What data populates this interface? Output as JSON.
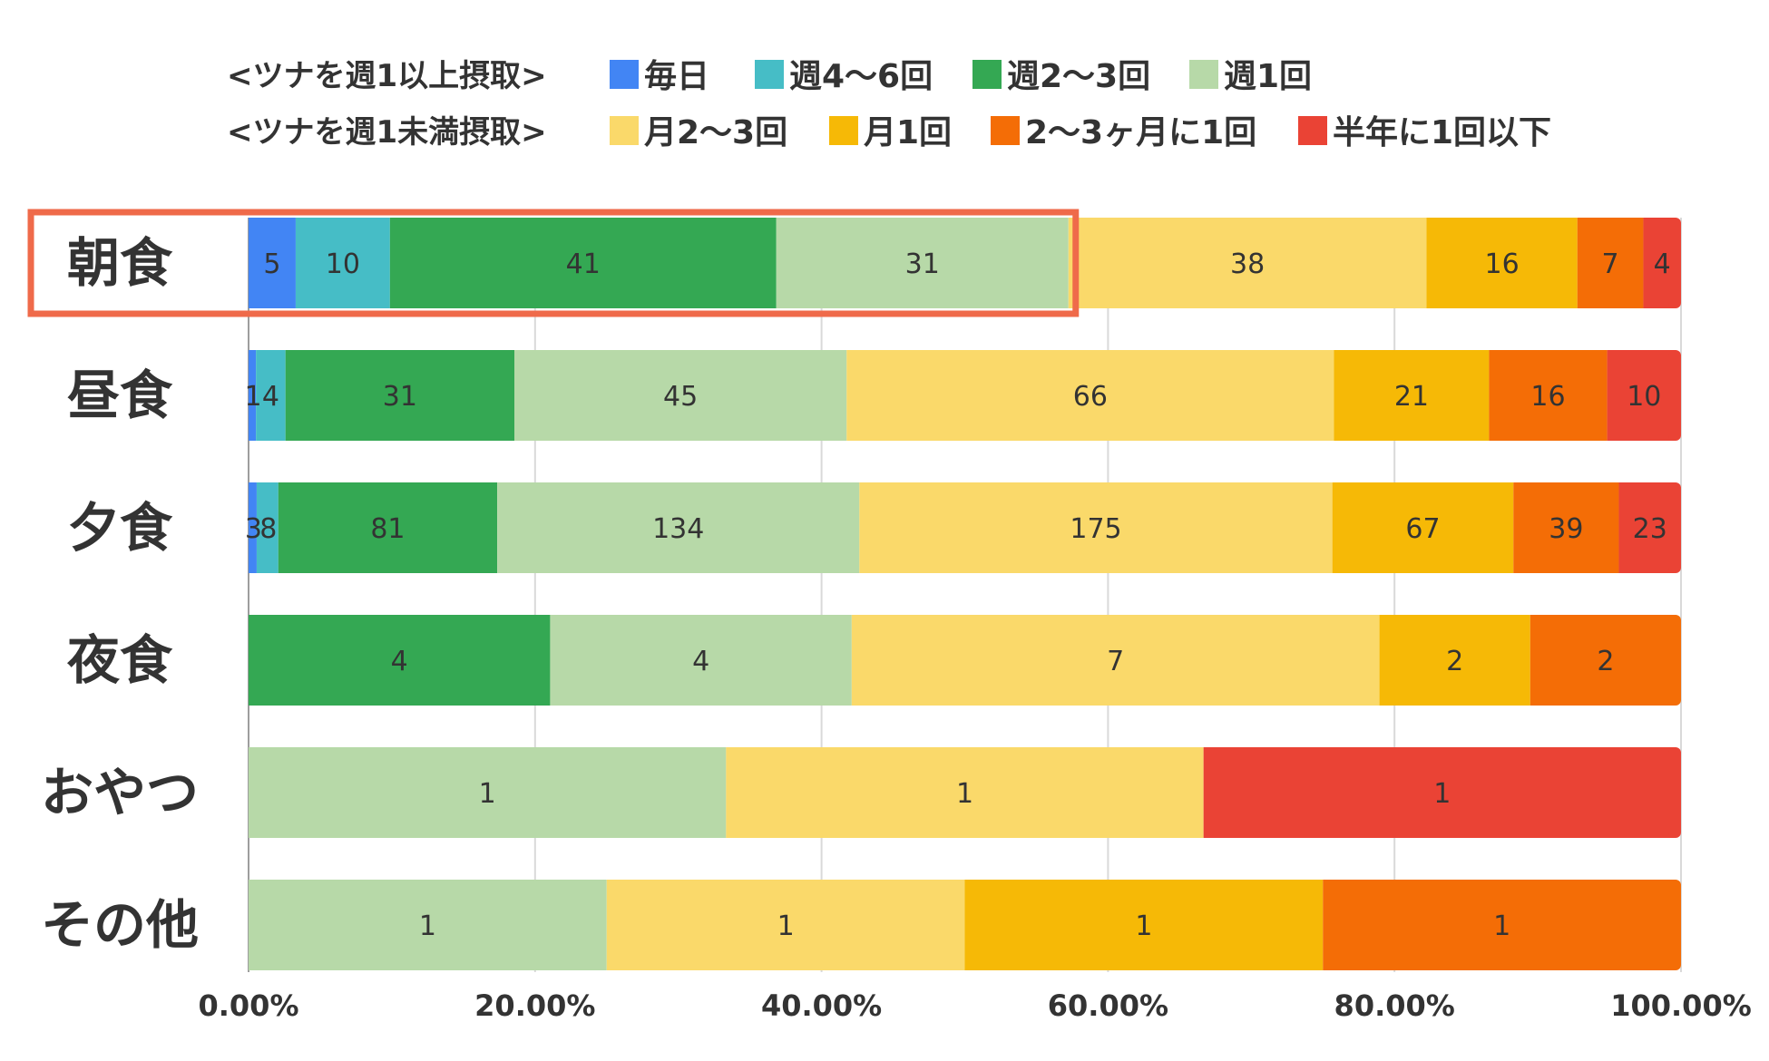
{
  "chart_data": {
    "type": "bar",
    "orientation": "horizontal",
    "stacked": "percent",
    "title": "",
    "xlabel": "",
    "ylabel": "",
    "xlim": [
      0,
      100
    ],
    "grid": "vertical",
    "legend_position": "top",
    "legend_groups": [
      {
        "label": "<ツナを週1以上摂取>",
        "series_indices": [
          0,
          1,
          2,
          3
        ]
      },
      {
        "label": "<ツナを週1未満摂取>",
        "series_indices": [
          4,
          5,
          6,
          7
        ]
      }
    ],
    "categories": [
      "朝食",
      "昼食",
      "夕食",
      "夜食",
      "おやつ",
      "その他"
    ],
    "x_tick_labels": [
      "0.00%",
      "20.00%",
      "40.00%",
      "60.00%",
      "80.00%",
      "100.00%"
    ],
    "highlight": {
      "category": "朝食",
      "series_indices": [
        0,
        1,
        2,
        3
      ],
      "color": "#ef6a4a"
    },
    "series": [
      {
        "name": "毎日",
        "color": "#4285f4",
        "values": [
          5,
          1,
          3,
          0,
          0,
          0
        ]
      },
      {
        "name": "週4〜6回",
        "color": "#46bdc6",
        "values": [
          10,
          4,
          8,
          0,
          0,
          0
        ]
      },
      {
        "name": "週2〜3回",
        "color": "#34a853",
        "values": [
          41,
          31,
          81,
          4,
          0,
          0
        ]
      },
      {
        "name": "週1回",
        "color": "#b7d9a8",
        "values": [
          31,
          45,
          134,
          4,
          1,
          1
        ]
      },
      {
        "name": "月2〜3回",
        "color": "#fad96a",
        "values": [
          38,
          66,
          175,
          7,
          1,
          1
        ]
      },
      {
        "name": "月1回",
        "color": "#f6b906",
        "values": [
          16,
          21,
          67,
          2,
          0,
          1
        ]
      },
      {
        "name": "2〜3ヶ月に1回",
        "color": "#f46d06",
        "values": [
          7,
          16,
          39,
          2,
          0,
          1
        ]
      },
      {
        "name": "半年に1回以下",
        "color": "#ea4335",
        "values": [
          4,
          10,
          23,
          0,
          1,
          0
        ]
      }
    ]
  }
}
